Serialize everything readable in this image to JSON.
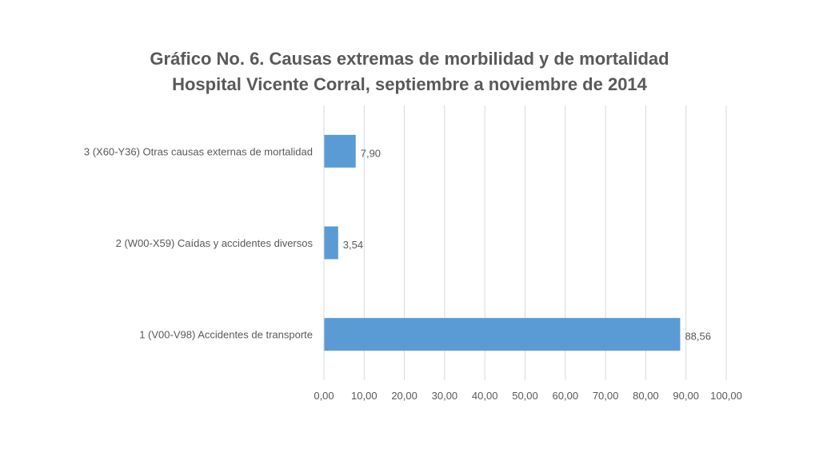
{
  "chart_data": {
    "type": "bar",
    "orientation": "horizontal",
    "title": [
      "Gráfico No. 6. Causas extremas de morbilidad y de mortalidad",
      "Hospital Vicente Corral, septiembre a noviembre de 2014"
    ],
    "categories": [
      "1 (V00-V98) Accidentes de transporte",
      "2 (W00-X59) Caídas y accidentes diversos",
      "3 (X60-Y36) Otras causas externas de mortalidad"
    ],
    "values": [
      88.56,
      3.54,
      7.9
    ],
    "data_labels": [
      "88,56",
      "3,54",
      "7,90"
    ],
    "xlim": [
      0,
      100
    ],
    "x_ticks": [
      "0,00",
      "10,00",
      "20,00",
      "30,00",
      "40,00",
      "50,00",
      "60,00",
      "70,00",
      "80,00",
      "90,00",
      "100,00"
    ],
    "grid": true,
    "bar_color": "#5b9bd5",
    "grid_color": "#d9d9d9",
    "text_color": "#595959"
  }
}
